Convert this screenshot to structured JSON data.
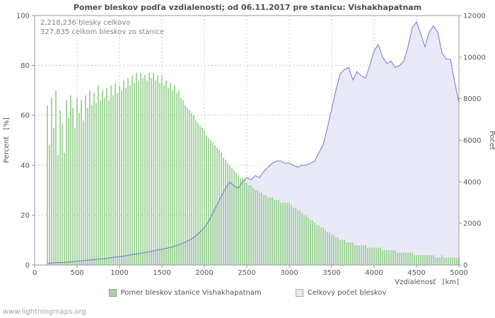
{
  "annotations": {
    "total": "2,218,236 blesky celkovo",
    "station": "327,835 celkom bleskov zo stanice"
  },
  "legend": [
    {
      "label": "Pomer bleskov stanice Vishakhapatnam",
      "swatch": "green-area-swatch"
    },
    {
      "label": "Celkový počet bleskov",
      "swatch": "lavender-area-swatch"
    }
  ],
  "footer": {
    "site": "www.lightningmaps.org"
  },
  "chart_data": {
    "type": "area",
    "title": "Pomer bleskov podľa vzdialenosti; od 06.11.2017 pre stanicu: Vishakhapatnam",
    "xlabel": "Vzdialenosť   [km]",
    "ylabel_left": "Percent   [%]",
    "ylabel_right": "Počet",
    "xlim": [
      0,
      5000
    ],
    "ylim_left": [
      0,
      100
    ],
    "ylim_right": [
      0,
      12000
    ],
    "x_ticks": [
      0,
      500,
      1000,
      1500,
      2000,
      2500,
      3000,
      3500,
      4000,
      4500,
      5000
    ],
    "y_left_ticks": [
      0,
      20,
      40,
      60,
      80,
      100
    ],
    "y_right_ticks": [
      0,
      2000,
      4000,
      6000,
      8000,
      10000,
      12000
    ],
    "grid": true,
    "legend_position": "bottom",
    "colors": {
      "grid": "#c8c8c8",
      "axis": "#999999",
      "text": "#555555"
    },
    "series": [
      {
        "name": "Pomer bleskov stanice Vishakhapatnam",
        "type": "bar",
        "axis": "left",
        "unit": "%",
        "color": "#a5d69e",
        "x_start": 150,
        "x_step": 25,
        "values": [
          64,
          48,
          67,
          55,
          70,
          44,
          62,
          57,
          45,
          66,
          59,
          68,
          63,
          55,
          67,
          61,
          66,
          58,
          68,
          63,
          70,
          64,
          69,
          65,
          72,
          66,
          70,
          67,
          71,
          66,
          72,
          68,
          73,
          69,
          72,
          70,
          74,
          71,
          75,
          72,
          76,
          73,
          77,
          74,
          77,
          75,
          76,
          74,
          77,
          75,
          77,
          74,
          76,
          73,
          76,
          72,
          74,
          71,
          73,
          70,
          72,
          69,
          70,
          67,
          66,
          64,
          63,
          62,
          61,
          60,
          58,
          57,
          56,
          55,
          54,
          52,
          51,
          50,
          49,
          48,
          47,
          46,
          45,
          43,
          42,
          41,
          40,
          39,
          38,
          37,
          36,
          35,
          35,
          34,
          33,
          32,
          32,
          31,
          30,
          30,
          29,
          29,
          28,
          28,
          27,
          27,
          27,
          26,
          26,
          26,
          25,
          25,
          25,
          25,
          25,
          24,
          23,
          23,
          22,
          22,
          21,
          20,
          20,
          19,
          18,
          18,
          17,
          16,
          16,
          15,
          15,
          14,
          13,
          13,
          12,
          12,
          11,
          11,
          10,
          10,
          10,
          9,
          9,
          9,
          9,
          8,
          8,
          8,
          8,
          8,
          8,
          7,
          7,
          7,
          7,
          7,
          7,
          7,
          6,
          6,
          6,
          6,
          6,
          6,
          6,
          5,
          5,
          5,
          5,
          5,
          5,
          5,
          5,
          4,
          4,
          4,
          4,
          4,
          4,
          4,
          4,
          4,
          4,
          3,
          3,
          3,
          4,
          3,
          3,
          3,
          3,
          3,
          3,
          3,
          3
        ]
      },
      {
        "name": "Celkový počet bleskov",
        "type": "line",
        "axis": "right",
        "unit": "count",
        "fill": "#e9e9f8",
        "line_color": "#7373cf",
        "x_start": 150,
        "x_step": 50,
        "values": [
          80,
          100,
          110,
          120,
          130,
          150,
          160,
          180,
          200,
          220,
          240,
          260,
          280,
          300,
          320,
          350,
          380,
          400,
          430,
          460,
          500,
          530,
          560,
          600,
          640,
          680,
          720,
          760,
          800,
          850,
          900,
          980,
          1050,
          1150,
          1250,
          1400,
          1600,
          1800,
          2100,
          2500,
          2900,
          3300,
          3700,
          4000,
          3800,
          3700,
          4000,
          4200,
          4100,
          4300,
          4200,
          4500,
          4700,
          4900,
          5000,
          5000,
          4900,
          4900,
          4800,
          4700,
          4800,
          4800,
          4900,
          5000,
          5400,
          5800,
          6600,
          7500,
          8400,
          9200,
          9400,
          9500,
          8900,
          9300,
          9100,
          9000,
          9600,
          10300,
          10600,
          10000,
          9700,
          9800,
          9500,
          9600,
          9800,
          10500,
          11400,
          11700,
          11100,
          10500,
          11200,
          11500,
          11200,
          10200,
          9900,
          9900,
          8800,
          7800
        ]
      }
    ]
  }
}
